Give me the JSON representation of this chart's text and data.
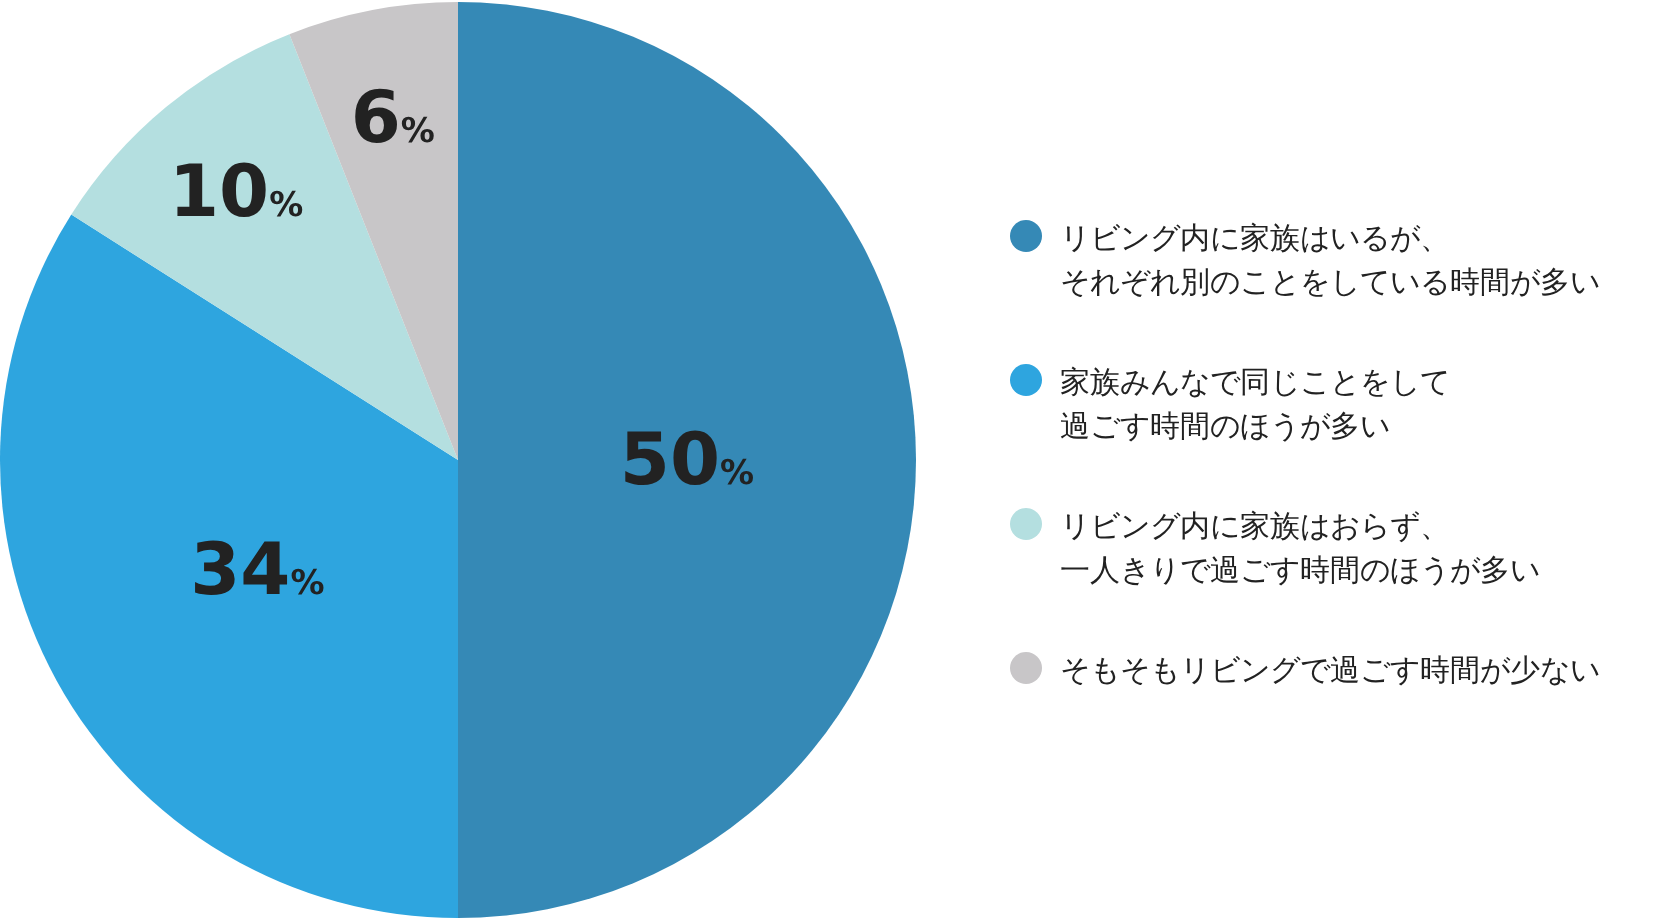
{
  "chart_data": {
    "type": "pie",
    "categories": [
      "リビング内に家族はいるが、それぞれ別のことをしている時間が多い",
      "家族みんなで同じことをして過ごす時間のほうが多い",
      "リビング内に家族はおらず、一人きりで過ごす時間のほうが多い",
      "そもそもリビングで過ごす時間が少ない"
    ],
    "values": [
      50,
      34,
      10,
      6
    ],
    "colors": [
      "#3589b6",
      "#2ea5df",
      "#b4dfe0",
      "#c8c6c8"
    ],
    "value_labels": [
      "50%",
      "34%",
      "10%",
      "6%"
    ],
    "legend": "right"
  }
}
